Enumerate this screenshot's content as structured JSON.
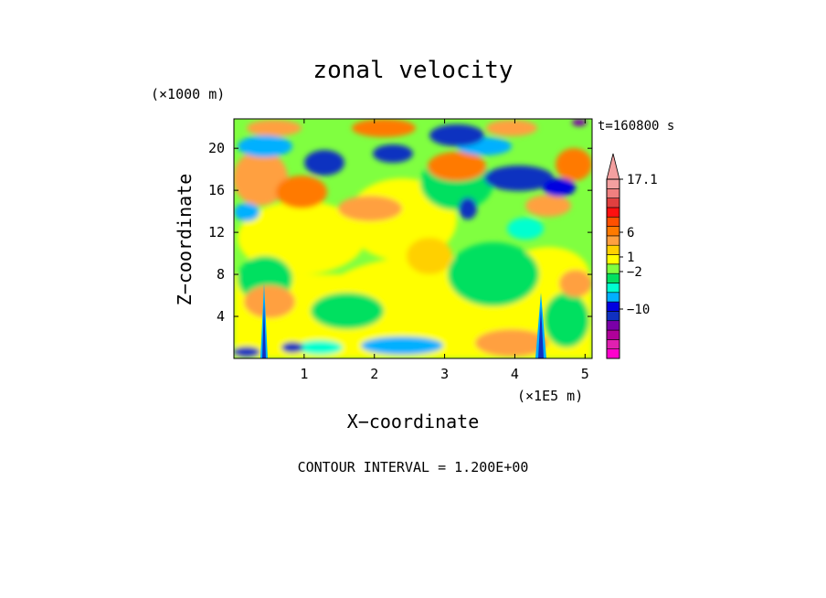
{
  "chart_data": {
    "type": "heatmap",
    "title": "zonal velocity",
    "xlabel": "X−coordinate",
    "ylabel": "Z−coordinate",
    "x_unit": "(×1E5 m)",
    "y_unit": "(×1000 m)",
    "time_label": "t=160800 s",
    "footer": "CONTOUR INTERVAL = 1.200E+00",
    "xlim": [
      0,
      5.1
    ],
    "ylim": [
      0,
      22.8
    ],
    "x_ticks": [
      1,
      2,
      3,
      4,
      5
    ],
    "y_ticks": [
      4,
      8,
      12,
      16,
      20
    ],
    "colorbar": {
      "labels": [
        {
          "text": "17.1",
          "value": 17.1
        },
        {
          "text": "6",
          "value": 6
        },
        {
          "text": "1",
          "value": 1
        },
        {
          "text": "−2",
          "value": -2
        },
        {
          "text": "−10",
          "value": -10
        }
      ],
      "colors": [
        "#ff00cc",
        "#e020b0",
        "#b0009a",
        "#7a00a8",
        "#1030c0",
        "#0000e0",
        "#00b0ff",
        "#00ffd0",
        "#00e060",
        "#80ff40",
        "#ffff00",
        "#ffd000",
        "#ffa040",
        "#ff7a00",
        "#ff5000",
        "#ff1010",
        "#e04040",
        "#f08080",
        "#f4a0a0"
      ]
    }
  }
}
